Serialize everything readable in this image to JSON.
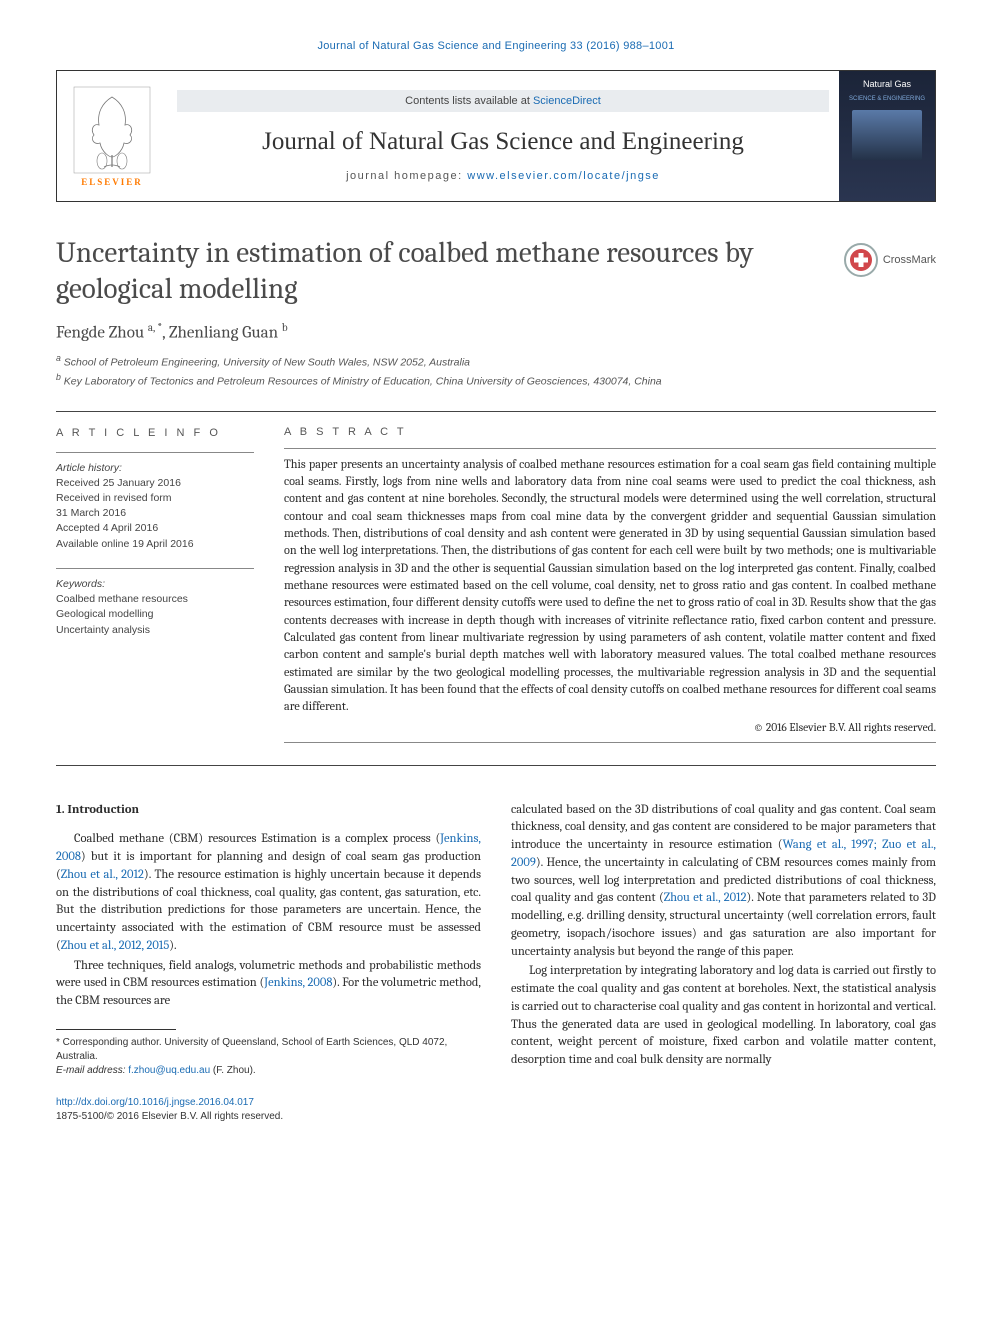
{
  "top_link": "Journal of Natural Gas Science and Engineering 33 (2016) 988–1001",
  "header": {
    "contents_prefix": "Contents lists available at ",
    "contents_link": "ScienceDirect",
    "journal_title": "Journal of Natural Gas Science and Engineering",
    "homepage_prefix": "journal homepage: ",
    "homepage_link": "www.elsevier.com/locate/jngse",
    "publisher": "ELSEVIER",
    "cover_title": "Natural Gas",
    "cover_sub": "SCIENCE & ENGINEERING"
  },
  "crossmark_label": "CrossMark",
  "title": "Uncertainty in estimation of coalbed methane resources by geological modelling",
  "authors_html": "Fengde Zhou <sup>a, *</sup>, Zhenliang Guan <sup>b</sup>",
  "affiliations": [
    "a School of Petroleum Engineering, University of New South Wales, NSW 2052, Australia",
    "b Key Laboratory of Tectonics and Petroleum Resources of Ministry of Education, China University of Geosciences, 430074, China"
  ],
  "article_info": {
    "heading": "A R T I C L E   I N F O",
    "history_label": "Article history:",
    "history": [
      "Received 25 January 2016",
      "Received in revised form",
      "31 March 2016",
      "Accepted 4 April 2016",
      "Available online 19 April 2016"
    ],
    "keywords_label": "Keywords:",
    "keywords": [
      "Coalbed methane resources",
      "Geological modelling",
      "Uncertainty analysis"
    ]
  },
  "abstract": {
    "heading": "A B S T R A C T",
    "text": "This paper presents an uncertainty analysis of coalbed methane resources estimation for a coal seam gas field containing multiple coal seams. Firstly, logs from nine wells and laboratory data from nine coal seams were used to predict the coal thickness, ash content and gas content at nine boreholes. Secondly, the structural models were determined using the well correlation, structural contour and coal seam thicknesses maps from coal mine data by the convergent gridder and sequential Gaussian simulation methods. Then, distributions of coal density and ash content were generated in 3D by using sequential Gaussian simulation based on the well log interpretations. Then, the distributions of gas content for each cell were built by two methods; one is multivariable regression analysis in 3D and the other is sequential Gaussian simulation based on the log interpreted gas content. Finally, coalbed methane resources were estimated based on the cell volume, coal density, net to gross ratio and gas content. In coalbed methane resources estimation, four different density cutoffs were used to define the net to gross ratio of coal in 3D. Results show that the gas contents decreases with increase in depth though with increases of vitrinite reflectance ratio, fixed carbon content and pressure. Calculated gas content from linear multivariate regression by using parameters of ash content, volatile matter content and fixed carbon content and sample's burial depth matches well with laboratory measured values. The total coalbed methane resources estimated are similar by the two geological modelling processes, the multivariable regression analysis in 3D and the sequential Gaussian simulation. It has been found that the effects of coal density cutoffs on coalbed methane resources for different coal seams are different.",
    "copyright": "© 2016 Elsevier B.V. All rights reserved."
  },
  "body": {
    "section_heading": "1.  Introduction",
    "left_paragraphs": [
      "Coalbed methane (CBM) resources Estimation is a complex process (<span class=\"ref\">Jenkins, 2008</span>) but it is important for planning and design of coal seam gas production (<span class=\"ref\">Zhou et al., 2012</span>). The resource estimation is highly uncertain because it depends on the distributions of coal thickness, coal quality, gas content, gas saturation, etc. But the distribution predictions for those parameters are uncertain. Hence, the uncertainty associated with the estimation of CBM resource must be assessed (<span class=\"ref\">Zhou et al., 2012, 2015</span>).",
      "Three techniques, field analogs, volumetric methods and probabilistic methods were used in CBM resources estimation (<span class=\"ref\">Jenkins, 2008</span>). For the volumetric method, the CBM resources are"
    ],
    "right_paragraphs": [
      "calculated based on the 3D distributions of coal quality and gas content. Coal seam thickness, coal density, and gas content are considered to be major parameters that introduce the uncertainty in resource estimation (<span class=\"ref\">Wang et al., 1997; Zuo et al., 2009</span>). Hence, the uncertainty in calculating of CBM resources comes mainly from two sources, well log interpretation and predicted distributions of coal thickness, coal quality and gas content (<span class=\"ref\">Zhou et al., 2012</span>). Note that parameters related to 3D modelling, e.g. drilling density, structural uncertainty (well correlation errors, fault geometry, isopach/isochore issues) and gas saturation are also important for uncertainty analysis but beyond the range of this paper.",
      "Log interpretation by integrating laboratory and log data is carried out firstly to estimate the coal quality and gas content at boreholes. Next, the statistical analysis is carried out to characterise coal quality and gas content in horizontal and vertical. Thus the generated data are used in geological modelling. In laboratory, coal gas content, weight percent of moisture, fixed carbon and volatile matter content, desorption time and coal bulk density are normally"
    ]
  },
  "footnote": {
    "corr": "* Corresponding author. University of Queensland, School of Earth Sciences, QLD 4072, Australia.",
    "email_label": "E-mail address: ",
    "email": "f.zhou@uq.edu.au",
    "email_suffix": " (F. Zhou)."
  },
  "doi": {
    "link": "http://dx.doi.org/10.1016/j.jngse.2016.04.017",
    "issn_line": "1875-5100/© 2016 Elsevier B.V. All rights reserved."
  },
  "colors": {
    "link": "#1a6bb3",
    "elsevier_orange": "#ff7a00",
    "text": "#2b2b2b"
  }
}
